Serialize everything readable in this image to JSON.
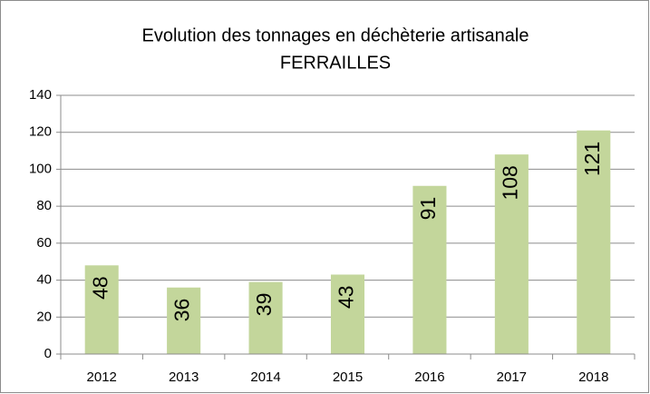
{
  "chart_data": {
    "type": "bar",
    "title": "Evolution des tonnages en déchèterie artisanale",
    "subtitle": "FERRAILLES",
    "categories": [
      "2012",
      "2013",
      "2014",
      "2015",
      "2016",
      "2017",
      "2018"
    ],
    "values": [
      48,
      36,
      39,
      43,
      91,
      108,
      121
    ],
    "color": "#c3d69b",
    "ylim": [
      0,
      140
    ],
    "yticks": [
      0,
      20,
      40,
      60,
      80,
      100,
      120,
      140
    ],
    "grid": true
  }
}
